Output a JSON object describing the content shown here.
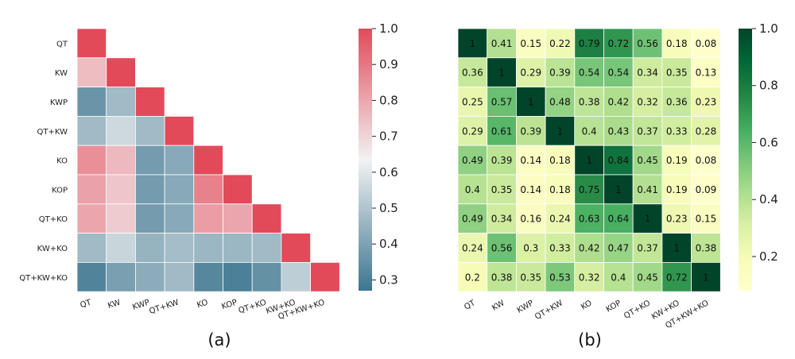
{
  "chart_data": [
    {
      "type": "heatmap",
      "panel_label": "(a)",
      "rows": [
        "QT",
        "KW",
        "KWP",
        "QT+KW",
        "KO",
        "KOP",
        "QT+KO",
        "KW+KO",
        "QT+KW+KO"
      ],
      "columns": [
        "QT",
        "KW",
        "KWP",
        "QT+KW",
        "KO",
        "KOP",
        "QT+KO",
        "KW+KO",
        "QT+KW+KO"
      ],
      "masked": "upper-triangle",
      "colormap": "diverging-blue-red",
      "colors": {
        "low": "#3d7690",
        "mid": "#f2f2f2",
        "high": "#e24a5a"
      },
      "vlim": [
        0.27,
        1.0
      ],
      "colorbar_ticks": [
        "0.3",
        "0.4",
        "0.5",
        "0.6",
        "0.7",
        "0.8",
        "0.9",
        "1.0"
      ],
      "values": [
        [
          1.0
        ],
        [
          0.75,
          1.0
        ],
        [
          0.36,
          0.47,
          1.0
        ],
        [
          0.47,
          0.56,
          0.47,
          1.0
        ],
        [
          0.85,
          0.76,
          0.38,
          0.42,
          1.0
        ],
        [
          0.81,
          0.73,
          0.38,
          0.42,
          0.88,
          1.0
        ],
        [
          0.8,
          0.72,
          0.38,
          0.42,
          0.82,
          0.8,
          1.0
        ],
        [
          0.47,
          0.55,
          0.45,
          0.48,
          0.46,
          0.46,
          0.47,
          1.0
        ],
        [
          0.31,
          0.39,
          0.43,
          0.47,
          0.32,
          0.3,
          0.35,
          0.53,
          1.0
        ]
      ]
    },
    {
      "type": "heatmap",
      "panel_label": "(b)",
      "rows": [
        "QT",
        "KW",
        "KWP",
        "QT+KW",
        "KO",
        "KOP",
        "QT+KO",
        "KW+KO",
        "QT+KW+KO"
      ],
      "columns": [
        "QT",
        "KW",
        "KWP",
        "QT+KW",
        "KO",
        "KOP",
        "QT+KO",
        "KW+KO",
        "QT+KW+KO"
      ],
      "colormap": "yellow-green",
      "vlim": [
        0.08,
        1.0
      ],
      "colorbar_ticks": [
        "0.2",
        "0.4",
        "0.6",
        "0.8",
        "1.0"
      ],
      "annotated": true,
      "values": [
        [
          "1",
          "0.41",
          "0.15",
          "0.22",
          "0.79",
          "0.72",
          "0.56",
          "0.18",
          "0.08"
        ],
        [
          "0.36",
          "1",
          "0.29",
          "0.39",
          "0.54",
          "0.54",
          "0.34",
          "0.35",
          "0.13"
        ],
        [
          "0.25",
          "0.57",
          "1",
          "0.48",
          "0.38",
          "0.42",
          "0.32",
          "0.36",
          "0.23"
        ],
        [
          "0.29",
          "0.61",
          "0.39",
          "1",
          "0.4",
          "0.43",
          "0.37",
          "0.33",
          "0.28"
        ],
        [
          "0.49",
          "0.39",
          "0.14",
          "0.18",
          "1",
          "0.84",
          "0.45",
          "0.19",
          "0.08"
        ],
        [
          "0.4",
          "0.35",
          "0.14",
          "0.18",
          "0.75",
          "1",
          "0.41",
          "0.19",
          "0.09"
        ],
        [
          "0.49",
          "0.34",
          "0.16",
          "0.24",
          "0.63",
          "0.64",
          "1",
          "0.23",
          "0.15"
        ],
        [
          "0.24",
          "0.56",
          "0.3",
          "0.33",
          "0.42",
          "0.47",
          "0.37",
          "1",
          "0.38"
        ],
        [
          "0.2",
          "0.38",
          "0.35",
          "0.53",
          "0.32",
          "0.4",
          "0.45",
          "0.72",
          "1"
        ]
      ]
    }
  ]
}
